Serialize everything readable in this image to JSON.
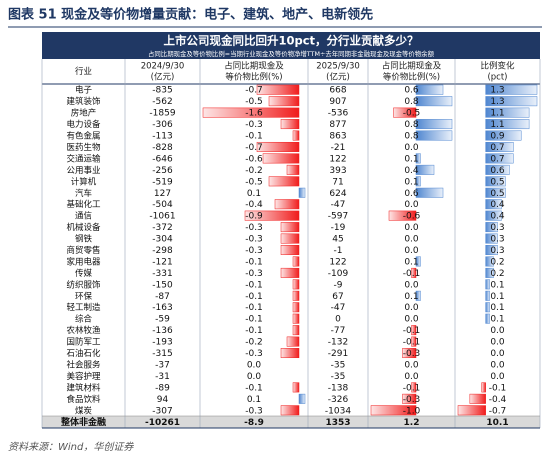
{
  "figure_title": "图表 51   现金及等价物增量贡献：电子、建筑、地产、电新领先",
  "table": {
    "title": "上市公司现金同比回升10pct，分行业贡献多少？",
    "note": "占同比期现金及等价物比例=当期行业现金及等价物净增TTM÷去年同期非金融现金及现金等价物余额",
    "headers": [
      [
        "行业"
      ],
      [
        "2024/9/30",
        "(亿元)"
      ],
      [
        "占同比期现金及",
        "等价物比例(%)"
      ],
      [
        "2025/9/30",
        "(亿元)"
      ],
      [
        "占同比期现金及",
        "等价物比例(%)"
      ],
      [
        "比例变化",
        "(pct)"
      ]
    ],
    "industries": [
      "电子",
      "建筑装饰",
      "房地产",
      "电力设备",
      "有色金属",
      "医药生物",
      "交通运输",
      "公用事业",
      "计算机",
      "汽车",
      "基础化工",
      "通信",
      "机械设备",
      "钢铁",
      "商贸零售",
      "家用电器",
      "传媒",
      "纺织服饰",
      "环保",
      "轻工制造",
      "综合",
      "农林牧渔",
      "国防军工",
      "石油石化",
      "社会服务",
      "美容护理",
      "建筑材料",
      "食品饮料",
      "煤炭"
    ],
    "cash_2024": [
      -835,
      -562,
      -1859,
      -306,
      -113,
      -828,
      -646,
      -256,
      -519,
      127,
      -504,
      -1061,
      -372,
      -304,
      -298,
      -121,
      -331,
      -150,
      -87,
      -163,
      -59,
      -136,
      -193,
      -315,
      -37,
      -31,
      -89,
      94,
      -307
    ],
    "ratio_2024": {
      "values": [
        -0.7,
        -0.5,
        -1.6,
        -0.3,
        -0.1,
        -0.7,
        -0.6,
        -0.2,
        -0.5,
        0.1,
        -0.4,
        -0.9,
        -0.3,
        -0.3,
        -0.3,
        -0.1,
        -0.3,
        -0.1,
        -0.1,
        -0.1,
        -0.1,
        -0.1,
        -0.2,
        -0.3,
        0,
        0,
        -0.1,
        0.1,
        -0.3
      ],
      "value_labels": [
        "-0.7",
        "-0.5",
        "-1.6",
        "-0.3",
        "-0.1",
        "-0.7",
        "-0.6",
        "-0.2",
        "-0.5",
        "0.1",
        "-0.4",
        "-0.9",
        "-0.3",
        "-0.3",
        "-0.3",
        "-0.1",
        "-0.3",
        "-0.1",
        "-0.1",
        "-0.1",
        "-0.1",
        "-0.1",
        "-0.2",
        "-0.3",
        "0.0",
        "0.0",
        "-0.1",
        "0.1",
        "-0.3"
      ]
    },
    "cash_2025": [
      668,
      907,
      -536,
      877,
      863,
      -21,
      122,
      393,
      71,
      624,
      -47,
      -597,
      -19,
      45,
      -1,
      122,
      -109,
      -9,
      67,
      -47,
      0,
      -77,
      -132,
      -291,
      -35,
      -35,
      -138,
      -326,
      -1034
    ],
    "ratio_2025": {
      "values": [
        0.6,
        0.8,
        -0.5,
        0.8,
        0.8,
        0,
        0.1,
        0.4,
        0.1,
        0.6,
        0,
        -0.6,
        0,
        0,
        0,
        0.1,
        -0.1,
        0,
        0.1,
        0,
        0,
        -0.1,
        -0.1,
        -0.3,
        0,
        0,
        -0.1,
        -0.3,
        -1
      ],
      "value_labels": [
        "0.6",
        "0.8",
        "-0.5",
        "0.8",
        "0.8",
        "0.0",
        "0.1",
        "0.4",
        "0.1",
        "0.6",
        "0.0",
        "-0.6",
        "0.0",
        "0.0",
        "0.0",
        "0.1",
        "-0.1",
        "0.0",
        "0.1",
        "0.0",
        "0.0",
        "-0.1",
        "-0.1",
        "-0.3",
        "0.0",
        "0.0",
        "-0.1",
        "-0.3",
        "-1.0"
      ]
    },
    "change": {
      "values": [
        1.3,
        1.3,
        1.1,
        1.1,
        0.9,
        0.7,
        0.7,
        0.6,
        0.5,
        0.5,
        0.4,
        0.4,
        0.3,
        0.3,
        0.3,
        0.2,
        0.2,
        0.1,
        0.1,
        0.1,
        0.1,
        0,
        0,
        0,
        0,
        0,
        -0.1,
        -0.4,
        -0.7
      ],
      "value_labels": [
        "1.3",
        "1.3",
        "1.1",
        "1.1",
        "0.9",
        "0.7",
        "0.7",
        "0.6",
        "0.5",
        "0.5",
        "0.4",
        "0.4",
        "0.3",
        "0.3",
        "0.3",
        "0.2",
        "0.2",
        "0.1",
        "0.1",
        "0.1",
        "0.1",
        "0.0",
        "0.0",
        "0.0",
        "0.0",
        "0.0",
        "-0.1",
        "-0.4",
        "-0.7"
      ]
    },
    "total": {
      "industry": "整体非金融",
      "cash_2024": -10261,
      "ratio_2024": -8.9,
      "cash_2025": 1353,
      "ratio_2025": 1.2,
      "change": 10.1
    }
  },
  "source": "资料来源：Wind，华创证券"
}
